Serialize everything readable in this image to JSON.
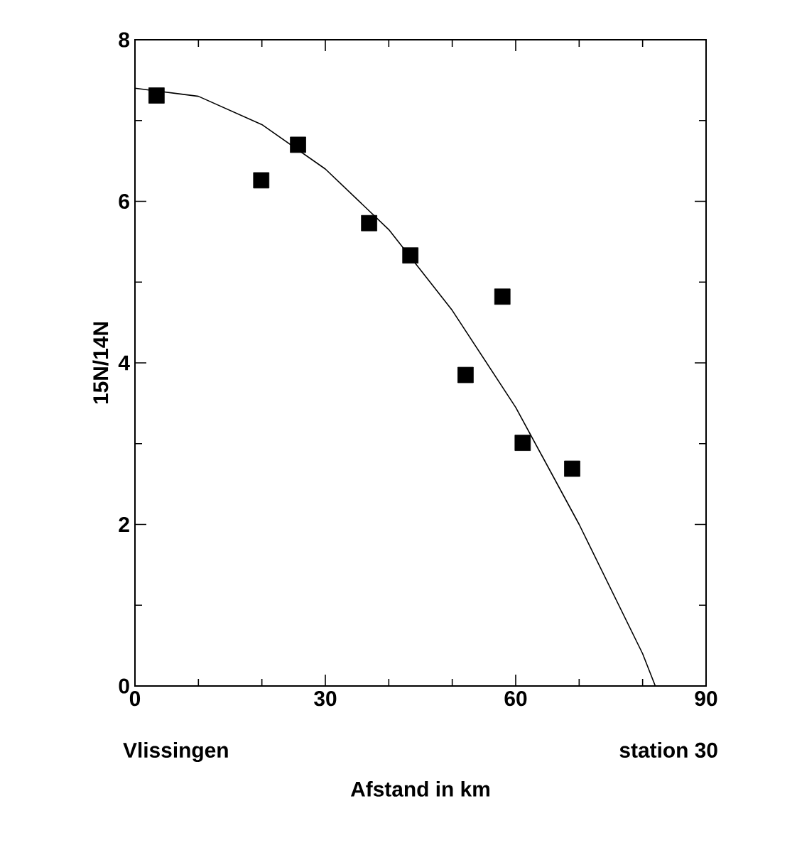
{
  "chart_data": {
    "type": "scatter",
    "xlabel": "Afstand in km",
    "ylabel": "15N/14N",
    "annotations": [
      "Vlissingen",
      "station 30"
    ],
    "series": [
      {
        "color": "#000000",
        "marker": "square",
        "x": [
          3.4,
          19.9,
          25.7,
          36.9,
          43.4,
          52.1,
          57.9,
          61.1,
          68.9
        ],
        "values": [
          7.31,
          6.26,
          6.7,
          5.73,
          5.33,
          3.85,
          4.82,
          3.01,
          2.69
        ]
      },
      {
        "type": "line",
        "color": "#000000",
        "marker": "none",
        "line_style": "solid",
        "x": [
          0,
          10,
          20,
          30,
          40,
          50,
          60,
          70,
          80,
          82
        ],
        "values": [
          7.4,
          7.3,
          6.95,
          6.4,
          5.65,
          4.65,
          3.45,
          2.0,
          0.4,
          0
        ]
      }
    ],
    "xlim": [
      0,
      90
    ],
    "ylim": [
      0,
      8
    ],
    "xticks": [
      0,
      30,
      60,
      90
    ],
    "yticks": [
      0,
      2,
      4,
      6,
      8
    ]
  }
}
